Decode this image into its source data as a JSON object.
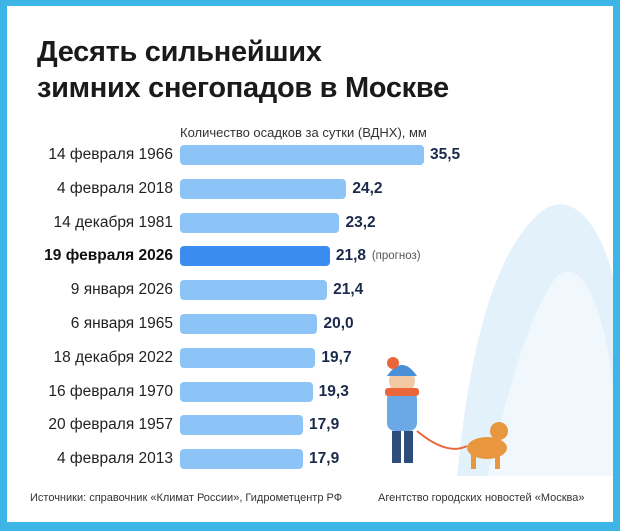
{
  "title_line1": "Десять сильнейших",
  "title_line2": "зимних снегопадов в Москве",
  "footer": {
    "sources": "Источники: справочник «Климат России», Гидрометцентр РФ",
    "agency": "Агентство городских новостей «Москва»"
  },
  "colors": {
    "bar": "#8cc4f7",
    "highlight": "#3a8cf0",
    "frame": "#3db5e6"
  },
  "chart_data": {
    "type": "bar",
    "orientation": "horizontal",
    "subtitle": "Количество осадков за сутки (ВДНХ), мм",
    "categories": [
      "14 февраля 1966",
      "4 февраля 2018",
      "14 декабря 1981",
      "19 февраля 2026",
      "9 января 2026",
      "6 января 1965",
      "18 декабря 2022",
      "16 февраля 1970",
      "20 февраля 1957",
      "4 февраля 2013"
    ],
    "values": [
      35.5,
      24.2,
      23.2,
      21.8,
      21.4,
      20.0,
      19.7,
      19.3,
      17.9,
      17.9
    ],
    "value_labels": [
      "35,5",
      "24,2",
      "23,2",
      "21,8",
      "21,4",
      "20,0",
      "19,7",
      "19,3",
      "17,9",
      "17,9"
    ],
    "highlight_index": 3,
    "highlight_note": "(прогноз)",
    "xlim": [
      0,
      35.5
    ]
  }
}
